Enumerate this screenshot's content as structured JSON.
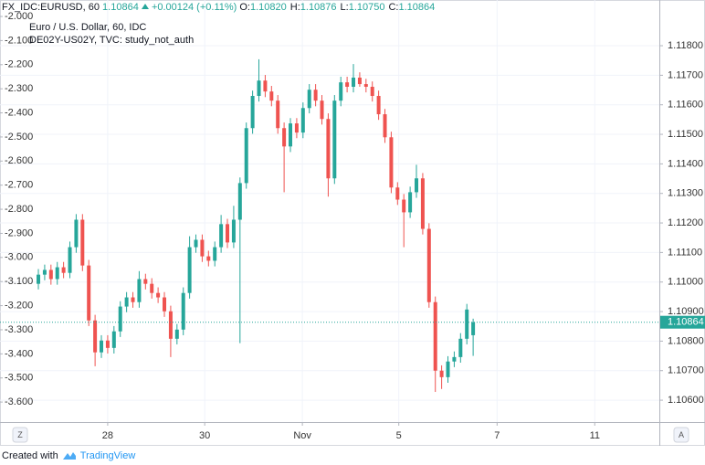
{
  "header": {
    "symbol": "FX_IDC:EURUSD, 60",
    "last": "1.10864",
    "change": "+0.00124 (+0.11%)",
    "ohlc": [
      {
        "key": "O:",
        "value": "1.10820"
      },
      {
        "key": "H:",
        "value": "1.10876"
      },
      {
        "key": "L:",
        "value": "1.10750"
      },
      {
        "key": "C:",
        "value": "1.10864"
      }
    ]
  },
  "footer": {
    "text": "Created with",
    "brand": "TradingView"
  },
  "axis_buttons": {
    "left": "Z",
    "right": "A"
  },
  "chart_data": {
    "type": "candlestick",
    "legend": [
      "Euro / U.S. Dollar, 60, IDC",
      "DE02Y-US02Y, TVC: study_not_auth"
    ],
    "up_color": "#26a69a",
    "down_color": "#ef5350",
    "grid": true,
    "xlim": [
      -6.09,
      98.55
    ],
    "xticks": [
      {
        "value": 11.0,
        "label": "28"
      },
      {
        "value": 26.4,
        "label": "30"
      },
      {
        "value": 41.9,
        "label": "Nov"
      },
      {
        "value": 57.2,
        "label": "5"
      },
      {
        "value": 72.8,
        "label": "7"
      },
      {
        "value": 88.3,
        "label": "11"
      }
    ],
    "ylim": [
      -3.683,
      -1.962
    ],
    "yticks": [
      {
        "value": -2.0,
        "label": "-2.000"
      },
      {
        "value": -2.1,
        "label": "-2.100"
      },
      {
        "value": -2.2,
        "label": "-2.200"
      },
      {
        "value": -2.3,
        "label": "-2.300"
      },
      {
        "value": -2.4,
        "label": "-2.400"
      },
      {
        "value": -2.5,
        "label": "-2.500"
      },
      {
        "value": -2.6,
        "label": "-2.600"
      },
      {
        "value": -2.7,
        "label": "-2.700"
      },
      {
        "value": -2.8,
        "label": "-2.800"
      },
      {
        "value": -2.9,
        "label": "-2.900"
      },
      {
        "value": -3.0,
        "label": "-3.000"
      },
      {
        "value": -3.1,
        "label": "-3.100"
      },
      {
        "value": -3.2,
        "label": "-3.200"
      },
      {
        "value": -3.3,
        "label": "-3.300"
      },
      {
        "value": -3.4,
        "label": "-3.400"
      },
      {
        "value": -3.5,
        "label": "-3.500"
      },
      {
        "value": -3.6,
        "label": "-3.600"
      }
    ],
    "y2lim": [
      1.10526,
      1.1193
    ],
    "y2ticks": [
      {
        "value": 1.106,
        "label": "1.10600"
      },
      {
        "value": 1.107,
        "label": "1.10700"
      },
      {
        "value": 1.108,
        "label": "1.10800"
      },
      {
        "value": 1.109,
        "label": "1.10900"
      },
      {
        "value": 1.11,
        "label": "1.11000"
      },
      {
        "value": 1.111,
        "label": "1.11100"
      },
      {
        "value": 1.112,
        "label": "1.11200"
      },
      {
        "value": 1.113,
        "label": "1.11300"
      },
      {
        "value": 1.114,
        "label": "1.11400"
      },
      {
        "value": 1.115,
        "label": "1.11500"
      },
      {
        "value": 1.116,
        "label": "1.11600"
      },
      {
        "value": 1.117,
        "label": "1.11700"
      },
      {
        "value": 1.118,
        "label": "1.11800"
      }
    ],
    "last_price": {
      "value": 1.10864,
      "label": "1.10864"
    },
    "candles": [
      [
        1.10994,
        1.11044,
        1.10975,
        1.11025
      ],
      [
        1.11025,
        1.11059,
        1.11006,
        1.11041
      ],
      [
        1.11041,
        1.11059,
        1.10991,
        1.1101
      ],
      [
        1.1101,
        1.11068,
        1.10991,
        1.1105
      ],
      [
        1.1105,
        1.11068,
        1.11013,
        1.11031
      ],
      [
        1.11031,
        1.11137,
        1.11013,
        1.11118
      ],
      [
        1.11118,
        1.1123,
        1.11099,
        1.11211
      ],
      [
        1.11211,
        1.1123,
        1.11037,
        1.11056
      ],
      [
        1.11056,
        1.11075,
        1.10851,
        1.1087
      ],
      [
        1.1087,
        1.10889,
        1.10715,
        1.10762
      ],
      [
        1.10762,
        1.1082,
        1.10743,
        1.10802
      ],
      [
        1.10802,
        1.1082,
        1.10758,
        1.10777
      ],
      [
        1.10777,
        1.10851,
        1.10758,
        1.10833
      ],
      [
        1.10833,
        1.10935,
        1.10814,
        1.10917
      ],
      [
        1.10917,
        1.10966,
        1.10898,
        1.10948
      ],
      [
        1.10948,
        1.10966,
        1.10913,
        1.10932
      ],
      [
        1.10932,
        1.11037,
        1.10913,
        1.1101
      ],
      [
        1.1101,
        1.11028,
        1.10975,
        1.10994
      ],
      [
        1.10994,
        1.11013,
        1.10944,
        1.10963
      ],
      [
        1.10963,
        1.10982,
        1.10929,
        1.10948
      ],
      [
        1.10948,
        1.10966,
        1.10882,
        1.10901
      ],
      [
        1.10901,
        1.1092,
        1.10746,
        1.10808
      ],
      [
        1.10808,
        1.10858,
        1.10789,
        1.10839
      ],
      [
        1.10839,
        1.10982,
        1.1082,
        1.10963
      ],
      [
        1.10963,
        1.11155,
        1.10944,
        1.11118
      ],
      [
        1.11118,
        1.11161,
        1.11099,
        1.11143
      ],
      [
        1.11143,
        1.11161,
        1.11068,
        1.11087
      ],
      [
        1.11087,
        1.11106,
        1.11053,
        1.11072
      ],
      [
        1.11072,
        1.11137,
        1.11053,
        1.11118
      ],
      [
        1.11118,
        1.11227,
        1.11099,
        1.11196
      ],
      [
        1.11196,
        1.11214,
        1.11115,
        1.11134
      ],
      [
        1.11134,
        1.11258,
        1.11115,
        1.11211
      ],
      [
        1.11211,
        1.11354,
        1.10793,
        1.11335
      ],
      [
        1.11335,
        1.1154,
        1.11316,
        1.11521
      ],
      [
        1.11521,
        1.11648,
        1.11502,
        1.1163
      ],
      [
        1.1163,
        1.11754,
        1.11611,
        1.11682
      ],
      [
        1.11682,
        1.11701,
        1.11626,
        1.11645
      ],
      [
        1.11645,
        1.11664,
        1.11595,
        1.11614
      ],
      [
        1.11614,
        1.11633,
        1.11502,
        1.11521
      ],
      [
        1.11521,
        1.1154,
        1.11304,
        1.11459
      ],
      [
        1.11459,
        1.11555,
        1.1144,
        1.11537
      ],
      [
        1.11537,
        1.11555,
        1.11487,
        1.11506
      ],
      [
        1.11506,
        1.11608,
        1.11487,
        1.11589
      ],
      [
        1.11589,
        1.1167,
        1.11571,
        1.11651
      ],
      [
        1.11651,
        1.1167,
        1.11595,
        1.11614
      ],
      [
        1.11614,
        1.11633,
        1.11533,
        1.11552
      ],
      [
        1.11552,
        1.11571,
        1.11289,
        1.11351
      ],
      [
        1.11351,
        1.11633,
        1.11332,
        1.11614
      ],
      [
        1.11614,
        1.11695,
        1.11595,
        1.11676
      ],
      [
        1.11676,
        1.11695,
        1.11642,
        1.11661
      ],
      [
        1.11661,
        1.11738,
        1.11642,
        1.11692
      ],
      [
        1.11692,
        1.1171,
        1.11661,
        1.1167
      ],
      [
        1.1167,
        1.11688,
        1.11642,
        1.11661
      ],
      [
        1.11661,
        1.11679,
        1.11611,
        1.1163
      ],
      [
        1.1163,
        1.11648,
        1.11549,
        1.11568
      ],
      [
        1.11568,
        1.11586,
        1.11471,
        1.1149
      ],
      [
        1.1149,
        1.11509,
        1.11301,
        1.1132
      ],
      [
        1.1132,
        1.11338,
        1.11261,
        1.11279
      ],
      [
        1.11279,
        1.11298,
        1.11118,
        1.11236
      ],
      [
        1.11236,
        1.11323,
        1.11217,
        1.11304
      ],
      [
        1.11304,
        1.11397,
        1.11285,
        1.11351
      ],
      [
        1.11351,
        1.11369,
        1.11161,
        1.1118
      ],
      [
        1.1118,
        1.11199,
        1.10913,
        1.10932
      ],
      [
        1.10932,
        1.10951,
        1.10628,
        1.107
      ],
      [
        1.107,
        1.10718,
        1.10638,
        1.10678
      ],
      [
        1.10678,
        1.10749,
        1.10659,
        1.10731
      ],
      [
        1.10731,
        1.10765,
        1.10712,
        1.10746
      ],
      [
        1.10746,
        1.10827,
        1.10727,
        1.10808
      ],
      [
        1.10808,
        1.10926,
        1.10789,
        1.10907
      ],
      [
        1.1082,
        1.10876,
        1.1075,
        1.10864
      ]
    ]
  }
}
